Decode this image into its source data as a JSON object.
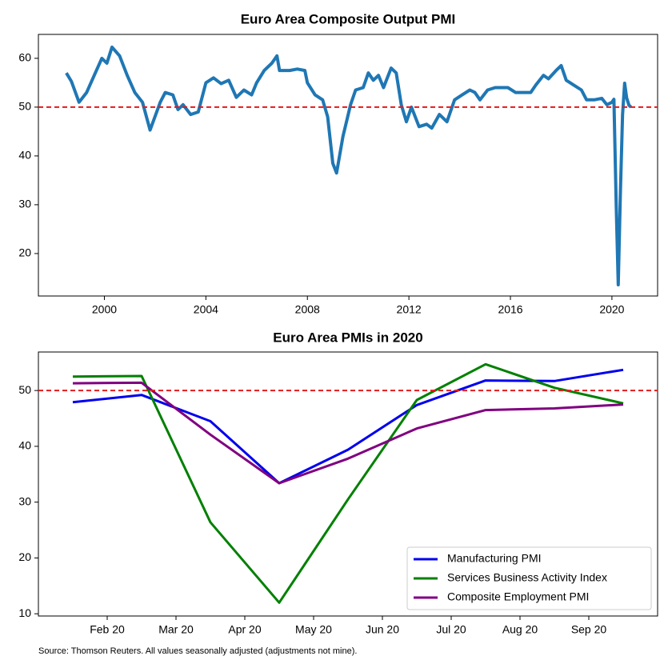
{
  "chart_data": [
    {
      "type": "line",
      "title": "Euro Area Composite Output PMI",
      "color": "#1f77b4",
      "x": [
        1998.5,
        1998.7,
        1999.0,
        1999.3,
        1999.6,
        1999.9,
        2000.1,
        2000.3,
        2000.6,
        2000.9,
        2001.2,
        2001.5,
        2001.8,
        2002.2,
        2002.4,
        2002.7,
        2002.9,
        2003.1,
        2003.4,
        2003.7,
        2004.0,
        2004.3,
        2004.6,
        2004.9,
        2005.2,
        2005.5,
        2005.8,
        2006.0,
        2006.3,
        2006.6,
        2006.8,
        2006.9,
        2007.3,
        2007.6,
        2007.9,
        2008.0,
        2008.3,
        2008.6,
        2008.8,
        2009.0,
        2009.15,
        2009.4,
        2009.7,
        2009.9,
        2010.2,
        2010.4,
        2010.6,
        2010.8,
        2011.0,
        2011.3,
        2011.5,
        2011.7,
        2011.9,
        2012.1,
        2012.4,
        2012.7,
        2012.9,
        2013.2,
        2013.5,
        2013.8,
        2014.1,
        2014.4,
        2014.6,
        2014.8,
        2015.1,
        2015.4,
        2015.7,
        2015.9,
        2016.2,
        2016.5,
        2016.8,
        2017.0,
        2017.3,
        2017.5,
        2017.8,
        2018.0,
        2018.2,
        2018.5,
        2018.8,
        2019.0,
        2019.3,
        2019.6,
        2019.8,
        2020.0,
        2020.08,
        2020.17,
        2020.25,
        2020.33,
        2020.42,
        2020.5,
        2020.58,
        2020.67,
        2020.75
      ],
      "values": [
        57,
        55.3,
        51,
        53,
        56.5,
        60,
        59,
        62.3,
        60.5,
        56.5,
        53,
        51,
        45.3,
        51,
        53,
        52.5,
        49.5,
        50.5,
        48.5,
        49,
        55,
        56,
        54.8,
        55.5,
        52,
        53.5,
        52.5,
        55,
        57.5,
        59,
        60.5,
        57.5,
        57.5,
        57.8,
        57.5,
        55,
        52.5,
        51.5,
        48,
        38.5,
        36.5,
        44,
        50.5,
        53.5,
        54,
        57,
        55.5,
        56.5,
        54,
        58,
        57,
        50.5,
        47,
        50,
        46,
        46.5,
        45.7,
        48.5,
        47,
        51.5,
        52.5,
        53.5,
        53,
        51.5,
        53.5,
        54,
        54,
        54,
        53,
        53,
        53,
        54.5,
        56.5,
        55.8,
        57.5,
        58.5,
        55.5,
        54.5,
        53.5,
        51.5,
        51.5,
        51.8,
        50.5,
        51,
        51.6,
        29.7,
        13.6,
        31.9,
        48.5,
        54.9,
        51.9,
        50.4,
        50.0
      ],
      "xlim": [
        1997.4,
        2021.8
      ],
      "xticks": [
        2000,
        2004,
        2008,
        2012,
        2016,
        2020
      ],
      "ylim": [
        11.3,
        64.9
      ],
      "yticks": [
        20,
        30,
        40,
        50,
        60
      ],
      "hline": 50,
      "hline_color": "#e41a1c"
    },
    {
      "type": "line",
      "title": "Euro Area PMIs in 2020",
      "x": [
        "2020-01",
        "2020-02",
        "2020-03",
        "2020-04",
        "2020-05",
        "2020-06",
        "2020-07",
        "2020-08",
        "2020-09"
      ],
      "series": [
        {
          "name": "Manufacturing PMI",
          "color": "#0000ee",
          "values": [
            47.9,
            49.2,
            44.5,
            33.4,
            39.4,
            47.4,
            51.8,
            51.7,
            53.7
          ]
        },
        {
          "name": "Services Business Activity Index",
          "color": "#008000",
          "values": [
            52.5,
            52.6,
            26.4,
            12.0,
            30.5,
            48.3,
            54.7,
            50.5,
            47.7
          ]
        },
        {
          "name": "Composite Employment PMI",
          "color": "#800080",
          "values": [
            51.3,
            51.4,
            42.1,
            33.4,
            37.8,
            43.2,
            46.5,
            46.8,
            47.5
          ]
        }
      ],
      "xlim": [
        "2020-01",
        "2020-10"
      ],
      "xticks": [
        {
          "value": "2020-02",
          "label": "Feb 20"
        },
        {
          "value": "2020-03",
          "label": "Mar 20"
        },
        {
          "value": "2020-04",
          "label": "Apr 20"
        },
        {
          "value": "2020-05",
          "label": "May 20"
        },
        {
          "value": "2020-06",
          "label": "Jun 20"
        },
        {
          "value": "2020-07",
          "label": "Jul 20"
        },
        {
          "value": "2020-08",
          "label": "Aug 20"
        },
        {
          "value": "2020-09",
          "label": "Sep 20"
        }
      ],
      "ylim": [
        9.6,
        56.9
      ],
      "yticks": [
        10,
        20,
        30,
        40,
        50
      ],
      "hline": 50,
      "hline_color": "#e41a1c",
      "legend": "lower right"
    }
  ],
  "source": "Source: Thomson Reuters. All values seasonally adjusted (adjustments not mine)."
}
